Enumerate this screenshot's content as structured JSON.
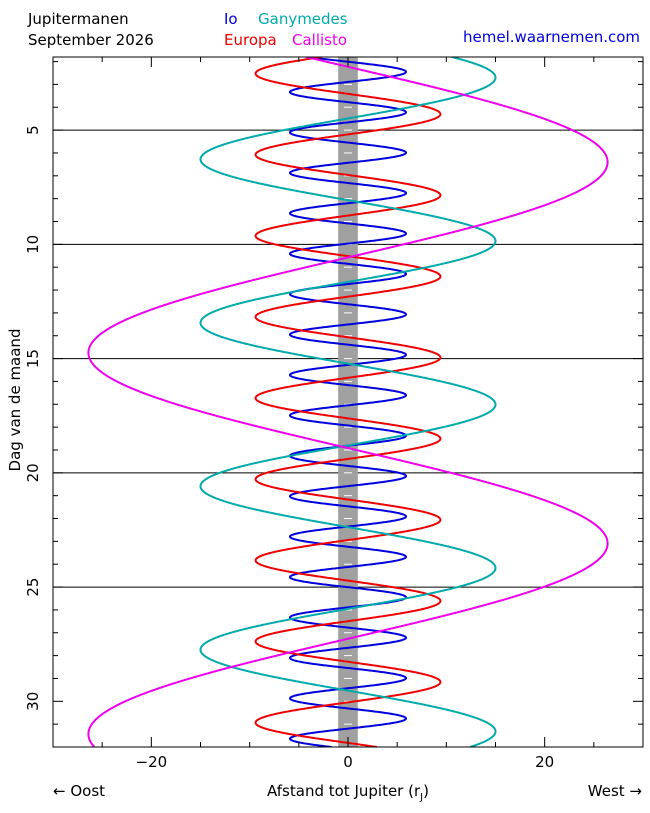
{
  "header": {
    "title_line1": "Jupitermanen",
    "title_line2": "September 2026",
    "source": "hemel.waarnemen.com"
  },
  "axis_labels": {
    "east": "← Oost",
    "west": "West →",
    "xlabel_main": "Afstand tot Jupiter (r",
    "xlabel_sub": "J",
    "xlabel_close": ")"
  },
  "chart_data": {
    "type": "line",
    "title": "Jupitermanen September 2026",
    "xlabel": "Afstand tot Jupiter (rJ)",
    "ylabel": "Dag van de maand",
    "xlim": [
      -30,
      30
    ],
    "ylim": [
      1.8,
      32
    ],
    "y_inverted": true,
    "x_ticks": [
      -20,
      0,
      20
    ],
    "y_ticks": [
      5,
      10,
      15,
      20,
      25,
      30
    ],
    "gridlines_y": [
      5,
      10,
      15,
      20,
      25
    ],
    "jupiter_band": [
      -1,
      1
    ],
    "series": [
      {
        "name": "Io",
        "color": "#0000dd",
        "amplitude": 5.9,
        "period_days": 1.769,
        "max_west_day": 2.45
      },
      {
        "name": "Europa",
        "color": "#ee0000",
        "amplitude": 9.4,
        "period_days": 3.551,
        "max_west_day": 4.3
      },
      {
        "name": "Ganymedes",
        "color": "#00aaaa",
        "amplitude": 15.0,
        "period_days": 7.155,
        "max_west_day": 2.7
      },
      {
        "name": "Callisto",
        "color": "#ee00ee",
        "amplitude": 26.4,
        "period_days": 16.689,
        "max_west_day": 6.4
      }
    ]
  }
}
